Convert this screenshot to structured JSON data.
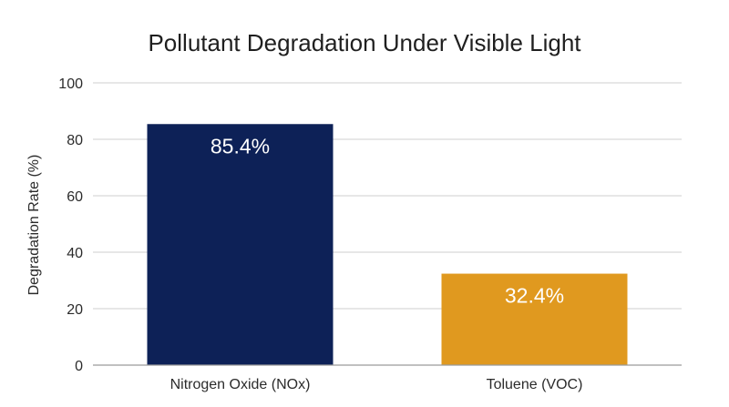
{
  "chart_data": {
    "type": "bar",
    "title": "Pollutant Degradation Under Visible Light",
    "xlabel": "",
    "ylabel": "Degradation Rate (%)",
    "categories": [
      "Nitrogen Oxide (NOx)",
      "Toluene (VOC)"
    ],
    "values": [
      85.4,
      32.4
    ],
    "data_labels": [
      "85.4%",
      "32.4%"
    ],
    "bar_colors": [
      "#0d2157",
      "#e0991f"
    ],
    "ylim": [
      0,
      100
    ],
    "yticks": [
      "0",
      "20",
      "40",
      "60",
      "80",
      "100"
    ],
    "grid": true,
    "legend": "none"
  }
}
